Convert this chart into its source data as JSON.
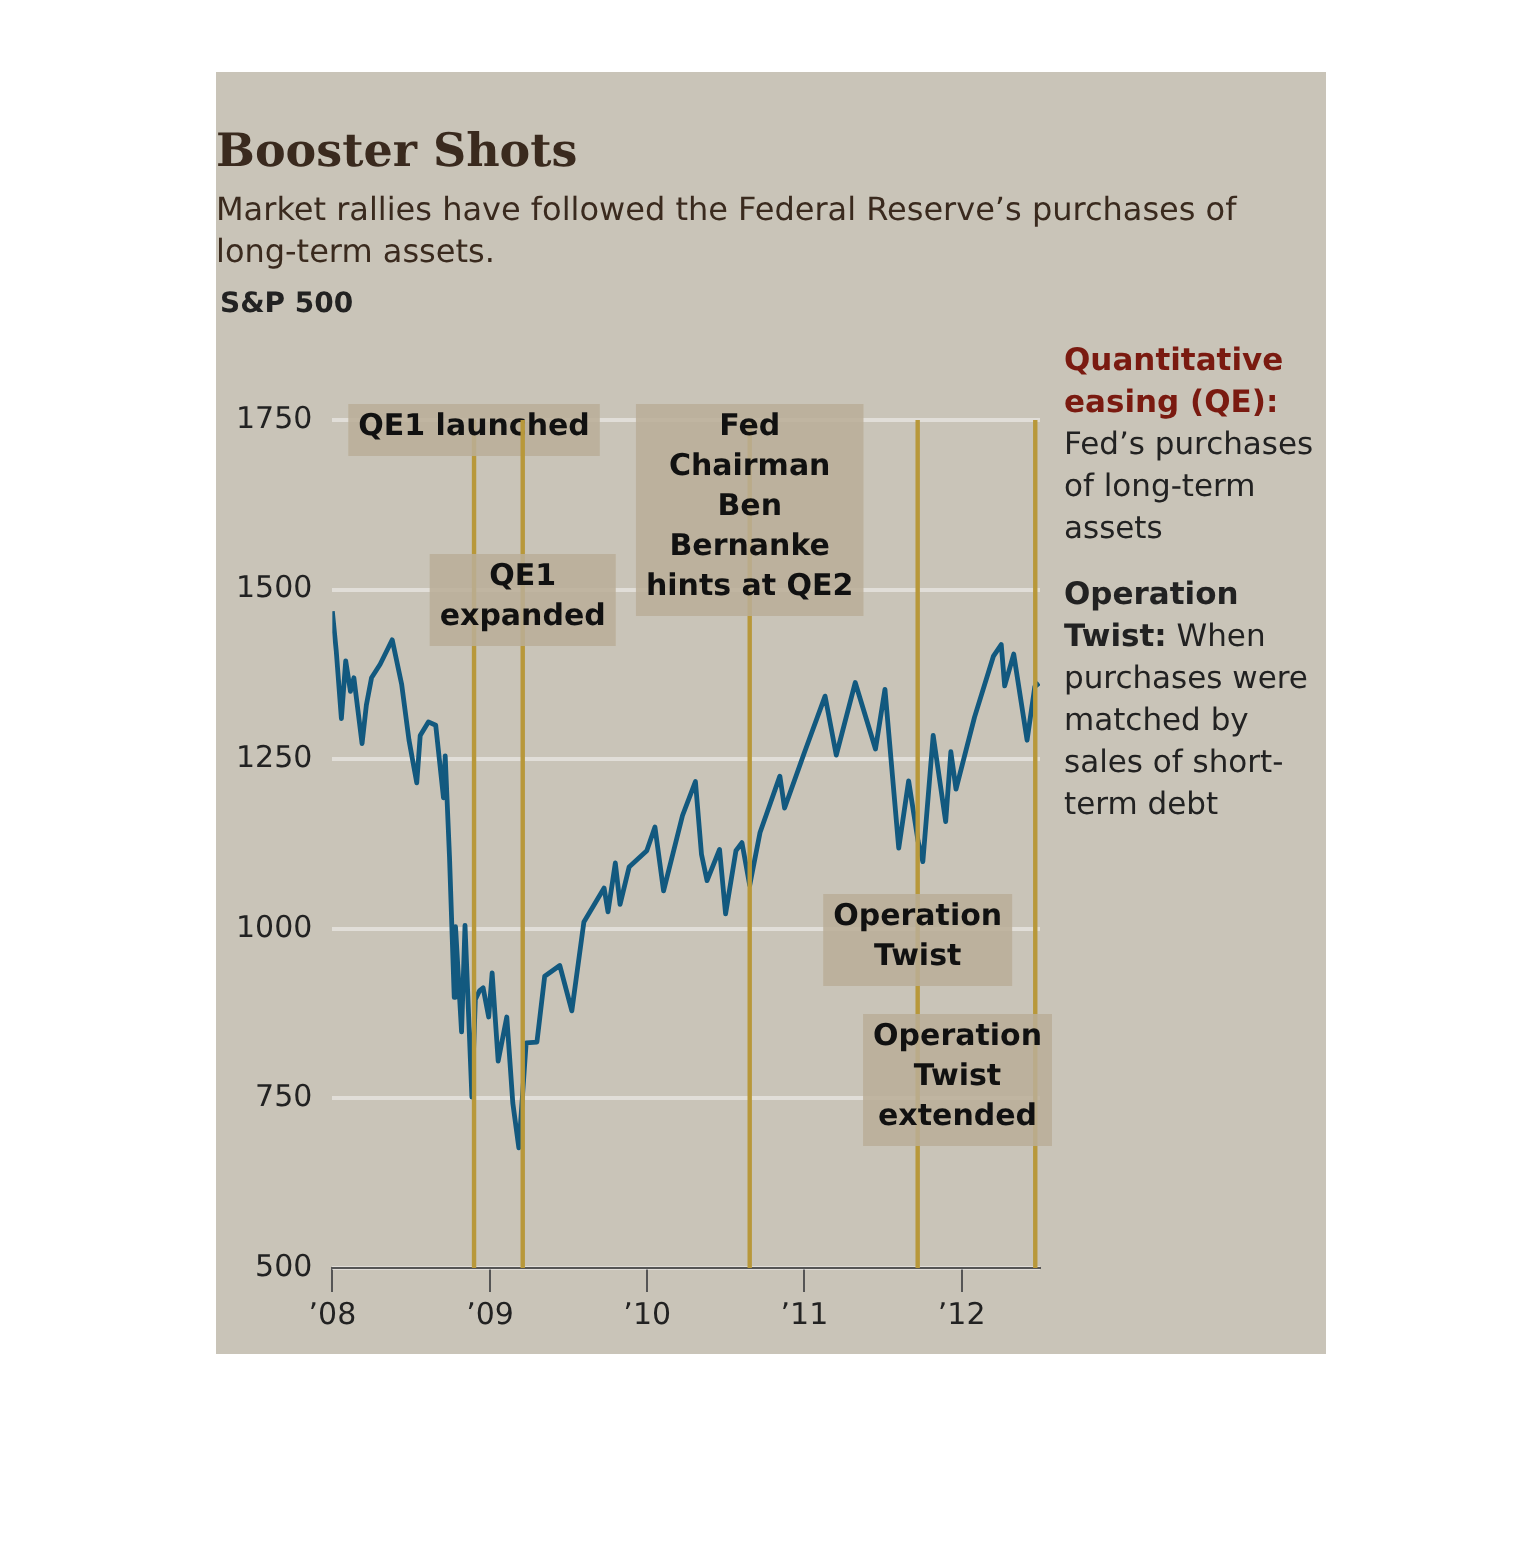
{
  "chart_data": {
    "type": "line",
    "title": "Booster Shots",
    "subtitle": "Market rallies have followed the Federal Reserve’s purchases of long-term assets.",
    "ylabel": "S&P 500",
    "x": [
      "2008-01-01",
      "2008-01-10",
      "2008-01-22",
      "2008-02-01",
      "2008-02-12",
      "2008-02-20",
      "2008-03-10",
      "2008-03-20",
      "2008-04-01",
      "2008-04-21",
      "2008-05-19",
      "2008-06-10",
      "2008-06-27",
      "2008-07-15",
      "2008-07-23",
      "2008-08-11",
      "2008-08-28",
      "2008-09-15",
      "2008-09-19",
      "2008-09-29",
      "2008-10-10",
      "2008-10-13",
      "2008-10-27",
      "2008-11-04",
      "2008-11-20",
      "2008-11-28",
      "2008-12-08",
      "2008-12-16",
      "2008-12-29",
      "2009-01-06",
      "2009-01-20",
      "2009-02-09",
      "2009-02-23",
      "2009-03-09",
      "2009-03-26",
      "2009-04-20",
      "2009-05-08",
      "2009-06-12",
      "2009-07-10",
      "2009-08-07",
      "2009-09-23",
      "2009-10-02",
      "2009-10-19",
      "2009-10-30",
      "2009-11-20",
      "2009-12-31",
      "2010-01-19",
      "2010-02-08",
      "2010-03-24",
      "2010-04-23",
      "2010-05-07",
      "2010-05-20",
      "2010-06-18",
      "2010-07-02",
      "2010-07-26",
      "2010-08-09",
      "2010-08-27",
      "2010-09-20",
      "2010-11-05",
      "2010-11-16",
      "2010-12-31",
      "2011-02-18",
      "2011-03-16",
      "2011-04-29",
      "2011-06-15",
      "2011-07-07",
      "2011-08-08",
      "2011-08-31",
      "2011-09-22",
      "2011-10-03",
      "2011-10-27",
      "2011-11-25",
      "2011-12-07",
      "2011-12-19",
      "2012-01-31",
      "2012-03-15",
      "2012-04-02",
      "2012-04-10",
      "2012-05-01",
      "2012-06-01",
      "2012-06-19",
      "2012-06-29"
    ],
    "series": [
      {
        "color": "#12597f",
        "values": [
          1468,
          1410,
          1310,
          1395,
          1350,
          1370,
          1273,
          1330,
          1370,
          1390,
          1426,
          1360,
          1278,
          1215,
          1285,
          1305,
          1300,
          1193,
          1255,
          1106,
          899,
          1003,
          848,
          1005,
          752,
          896,
          909,
          913,
          870,
          935,
          805,
          870,
          743,
          677,
          832,
          833,
          930,
          946,
          879,
          1010,
          1060,
          1025,
          1097,
          1036,
          1091,
          1115,
          1150,
          1056,
          1167,
          1217,
          1110,
          1071,
          1117,
          1022,
          1115,
          1127,
          1064,
          1142,
          1225,
          1178,
          1258,
          1343,
          1256,
          1363,
          1265,
          1353,
          1119,
          1218,
          1129,
          1099,
          1285,
          1158,
          1261,
          1206,
          1312,
          1402,
          1419,
          1358,
          1405,
          1278,
          1357,
          1362
        ]
      }
    ],
    "xlim": [
      "2008-01-01",
      "2012-07-01"
    ],
    "xticks": [
      {
        "value": "2008-01-01",
        "label": "’08"
      },
      {
        "value": "2009-01-01",
        "label": "’09"
      },
      {
        "value": "2010-01-01",
        "label": "’10"
      },
      {
        "value": "2011-01-01",
        "label": "’11"
      },
      {
        "value": "2012-01-01",
        "label": "’12"
      }
    ],
    "ylim": [
      500,
      1750
    ],
    "yticks": [
      500,
      750,
      1000,
      1250,
      1500,
      1750
    ],
    "grid": "y",
    "legend": false,
    "marker": "none",
    "line_style": "solid",
    "ref_lines": [
      {
        "axis": "x",
        "value": "2008-11-25",
        "label": "QE1 launched",
        "color": "#b8983a"
      },
      {
        "axis": "x",
        "value": "2009-03-18",
        "label": "QE1 expanded",
        "color": "#b8983a"
      },
      {
        "axis": "x",
        "value": "2010-08-27",
        "label": "Fed Chairman Ben Bernanke hints at QE2",
        "color": "#b8983a"
      },
      {
        "axis": "x",
        "value": "2011-09-21",
        "label": "Operation Twist",
        "color": "#b8983a"
      },
      {
        "axis": "x",
        "value": "2012-06-20",
        "label": "Operation Twist extended",
        "color": "#b8983a"
      }
    ],
    "annotations": [
      "Quantitative easing (QE): Fed’s purchases of long-term assets",
      "Operation Twist: When purchases were matched by sales of short-term debt"
    ]
  }
}
